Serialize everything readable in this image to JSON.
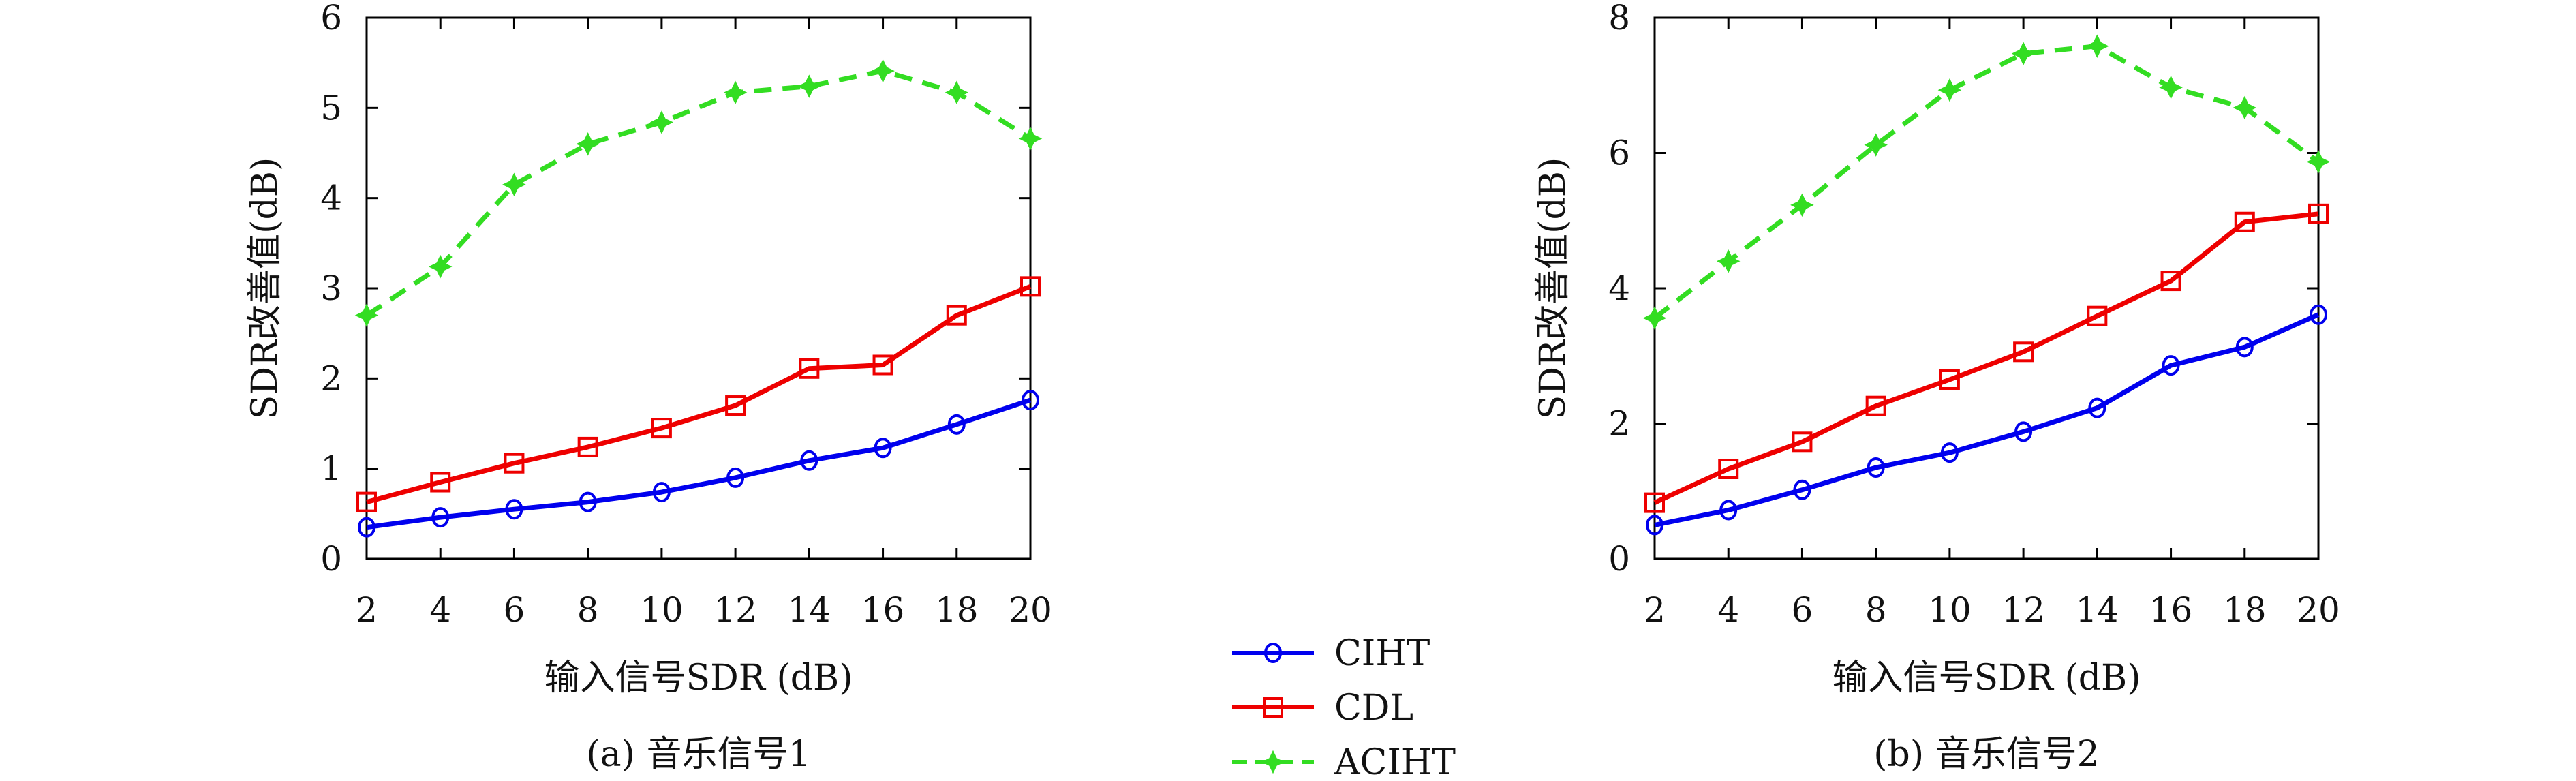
{
  "chart_data": [
    {
      "type": "line",
      "title": "(a) 音乐信号1",
      "xlabel": "输入信号SDR (dB)",
      "ylabel": "SDR改善值(dB)",
      "x": [
        2,
        4,
        6,
        8,
        10,
        12,
        14,
        16,
        18,
        20
      ],
      "xlim": [
        2,
        20
      ],
      "ylim": [
        0,
        6
      ],
      "xticks": [
        "2",
        "4",
        "6",
        "8",
        "10",
        "12",
        "14",
        "16",
        "18",
        "20"
      ],
      "yticks": [
        "0",
        "1",
        "2",
        "3",
        "4",
        "5",
        "6"
      ],
      "grid": false,
      "series": [
        {
          "name": "CIHT",
          "color": "#0000ee",
          "dash": "solid",
          "marker": "circle",
          "values": [
            0.35,
            0.46,
            0.55,
            0.63,
            0.74,
            0.9,
            1.09,
            1.23,
            1.49,
            1.76
          ]
        },
        {
          "name": "CDL",
          "color": "#ee0000",
          "dash": "solid",
          "marker": "square",
          "values": [
            0.63,
            0.85,
            1.06,
            1.24,
            1.45,
            1.7,
            2.11,
            2.15,
            2.7,
            3.02
          ]
        },
        {
          "name": "ACIHT",
          "color": "#33dd22",
          "dash": "dashed",
          "marker": "star",
          "values": [
            2.7,
            3.24,
            4.15,
            4.6,
            4.84,
            5.17,
            5.24,
            5.41,
            5.17,
            4.66
          ]
        }
      ]
    },
    {
      "type": "line",
      "title": "(b) 音乐信号2",
      "xlabel": "输入信号SDR (dB)",
      "ylabel": "SDR改善值(dB)",
      "x": [
        2,
        4,
        6,
        8,
        10,
        12,
        14,
        16,
        18,
        20
      ],
      "xlim": [
        2,
        20
      ],
      "ylim": [
        0,
        8
      ],
      "xticks": [
        "2",
        "4",
        "6",
        "8",
        "10",
        "12",
        "14",
        "16",
        "18",
        "20"
      ],
      "yticks": [
        "0",
        "2",
        "4",
        "6",
        "8"
      ],
      "grid": false,
      "series": [
        {
          "name": "CIHT",
          "color": "#0000ee",
          "dash": "solid",
          "marker": "circle",
          "values": [
            0.5,
            0.72,
            1.02,
            1.35,
            1.57,
            1.88,
            2.23,
            2.86,
            3.13,
            3.61
          ]
        },
        {
          "name": "CDL",
          "color": "#ee0000",
          "dash": "solid",
          "marker": "square",
          "values": [
            0.83,
            1.33,
            1.73,
            2.26,
            2.65,
            3.06,
            3.59,
            4.11,
            4.98,
            5.1
          ]
        },
        {
          "name": "ACIHT",
          "color": "#33dd22",
          "dash": "dashed",
          "marker": "star",
          "values": [
            3.56,
            4.4,
            5.23,
            6.12,
            6.93,
            7.47,
            7.58,
            6.97,
            6.67,
            5.87
          ]
        }
      ]
    }
  ],
  "legend": {
    "placement": "bottom-center",
    "entries": [
      {
        "label": "CIHT",
        "color": "#0000ee",
        "dash": "solid",
        "marker": "circle"
      },
      {
        "label": "CDL",
        "color": "#ee0000",
        "dash": "solid",
        "marker": "square"
      },
      {
        "label": "ACIHT",
        "color": "#33dd22",
        "dash": "dashed",
        "marker": "star"
      }
    ]
  }
}
